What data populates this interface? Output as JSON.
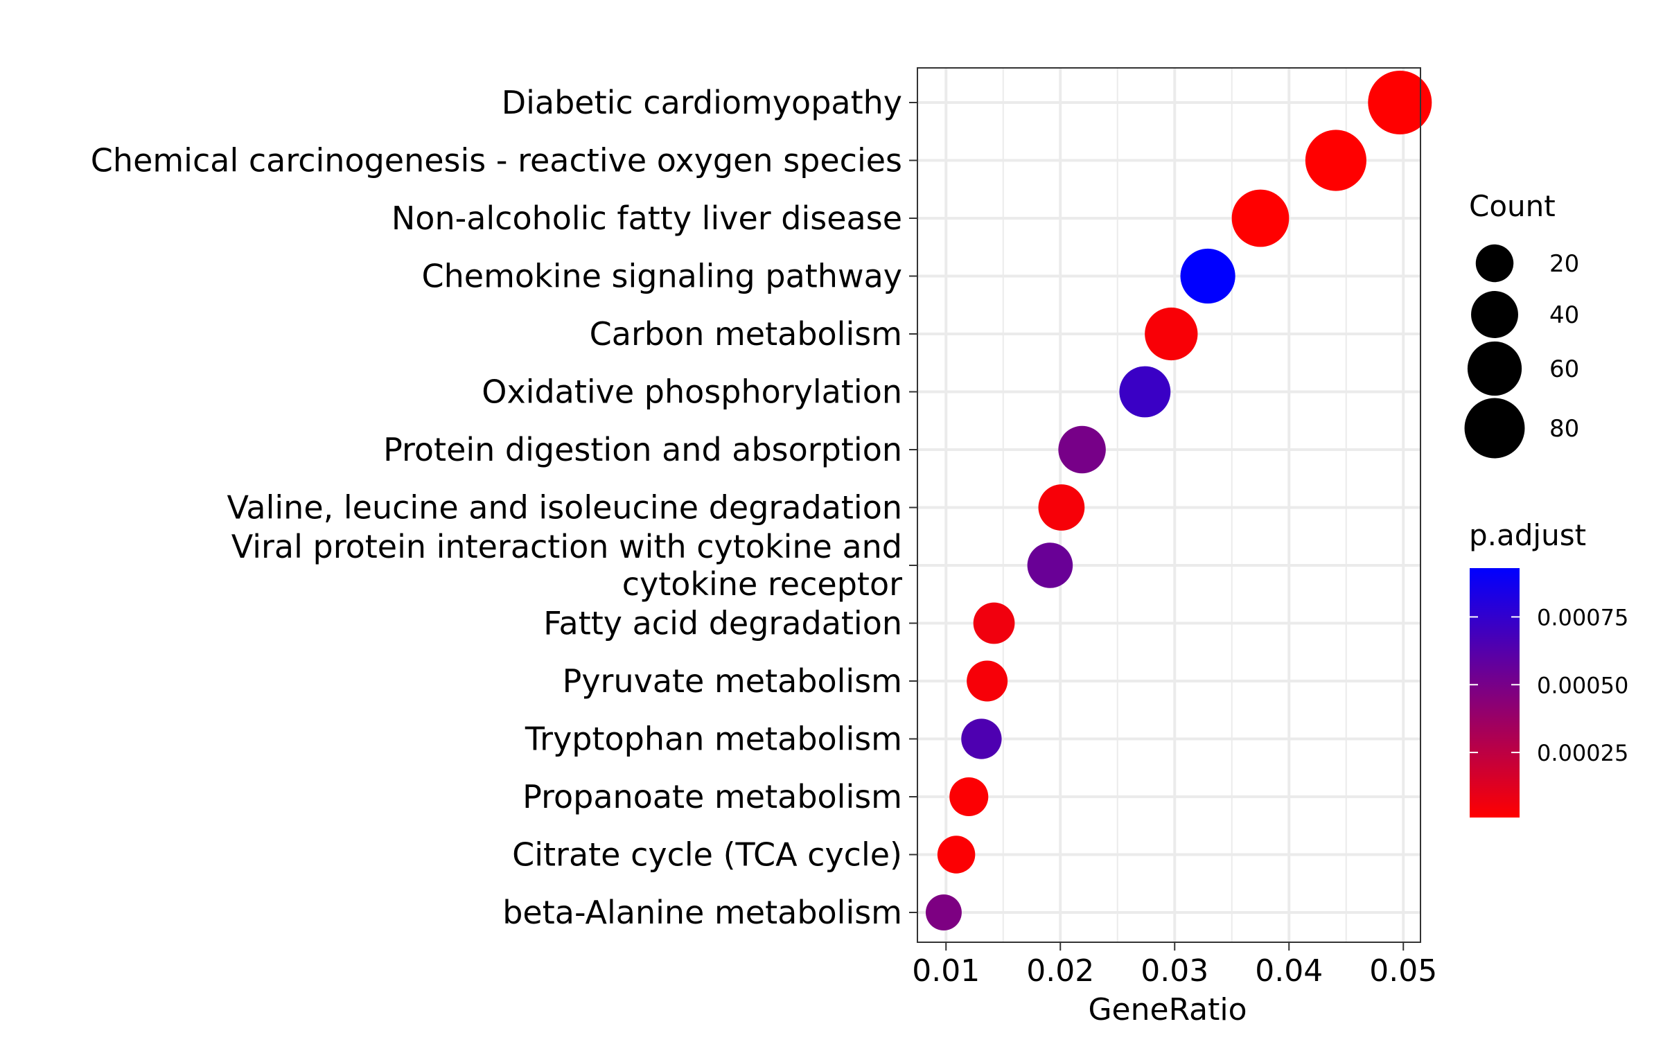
{
  "chart_data": {
    "type": "scatter",
    "xlabel": "GeneRatio",
    "ylabel": "",
    "xlim": [
      0.0075,
      0.0515
    ],
    "xticks": [
      0.01,
      0.02,
      0.03,
      0.04,
      0.05
    ],
    "xtick_labels": [
      "0.01",
      "0.02",
      "0.03",
      "0.04",
      "0.05"
    ],
    "grid": true,
    "legend_position": "right",
    "points": [
      {
        "term": "Diabetic cardiomyopathy",
        "gene_ratio": 0.0497,
        "count": 93,
        "p_adjust": 1e-05
      },
      {
        "term": "Chemical carcinogenesis - reactive oxygen species",
        "gene_ratio": 0.0441,
        "count": 83,
        "p_adjust": 1e-05
      },
      {
        "term": "Non-alcoholic fatty liver disease",
        "gene_ratio": 0.0375,
        "count": 70,
        "p_adjust": 1e-05
      },
      {
        "term": "Chemokine signaling pathway",
        "gene_ratio": 0.0329,
        "count": 62,
        "p_adjust": 0.00093
      },
      {
        "term": "Carbon metabolism",
        "gene_ratio": 0.0297,
        "count": 56,
        "p_adjust": 3e-05
      },
      {
        "term": "Oxidative phosphorylation",
        "gene_ratio": 0.0274,
        "count": 51,
        "p_adjust": 0.00072
      },
      {
        "term": "Protein digestion and absorption",
        "gene_ratio": 0.0219,
        "count": 41,
        "p_adjust": 0.0005
      },
      {
        "term": "Valine, leucine and isoleucine degradation",
        "gene_ratio": 0.0201,
        "count": 38,
        "p_adjust": 4e-05
      },
      {
        "term": "Viral protein interaction with cytokine and\ncytokine receptor",
        "gene_ratio": 0.0191,
        "count": 36,
        "p_adjust": 0.00055
      },
      {
        "term": "Fatty acid degradation",
        "gene_ratio": 0.0142,
        "count": 27,
        "p_adjust": 6e-05
      },
      {
        "term": "Pyruvate metabolism",
        "gene_ratio": 0.0136,
        "count": 26,
        "p_adjust": 4e-05
      },
      {
        "term": "Tryptophan metabolism",
        "gene_ratio": 0.0131,
        "count": 25,
        "p_adjust": 0.00065
      },
      {
        "term": "Propanoate metabolism",
        "gene_ratio": 0.012,
        "count": 22,
        "p_adjust": 2e-05
      },
      {
        "term": "Citrate cycle (TCA cycle)",
        "gene_ratio": 0.0109,
        "count": 20,
        "p_adjust": 2e-05
      },
      {
        "term": "beta-Alanine metabolism",
        "gene_ratio": 0.0098,
        "count": 17,
        "p_adjust": 0.00048
      }
    ],
    "size_legend": {
      "title": "Count",
      "values": [
        20,
        40,
        60,
        80
      ],
      "labels": [
        "20",
        "40",
        "60",
        "80"
      ]
    },
    "color_legend": {
      "title": "p.adjust",
      "range": [
        1e-05,
        0.00093
      ],
      "ticks": [
        0.00025,
        0.0005,
        0.00075
      ],
      "labels": [
        "0.00025",
        "0.00050",
        "0.00075"
      ],
      "low_color": "#FF0000",
      "high_color": "#0000FF"
    },
    "colors": {
      "panel_border": "#333333",
      "grid": "#EBEBEB",
      "low": "#FF0000",
      "high": "#0000FF"
    }
  }
}
